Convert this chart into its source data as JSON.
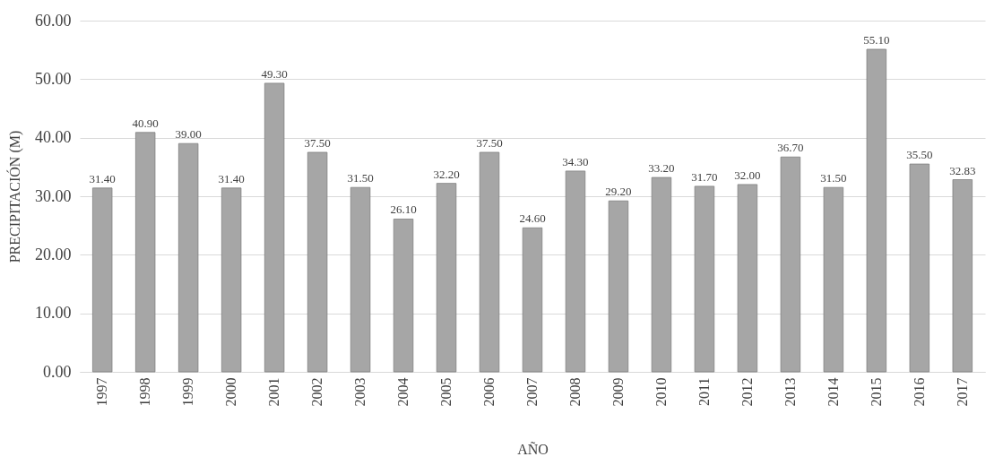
{
  "chart_data": {
    "type": "bar",
    "xlabel": "AÑO",
    "ylabel": "PRECIPITACIÓN (M)",
    "categories": [
      "1997",
      "1998",
      "1999",
      "2000",
      "2001",
      "2002",
      "2003",
      "2004",
      "2005",
      "2006",
      "2007",
      "2008",
      "2009",
      "2010",
      "2011",
      "2012",
      "2013",
      "2014",
      "2015",
      "2016",
      "2017"
    ],
    "values": [
      31.4,
      40.9,
      39.0,
      31.4,
      49.3,
      37.5,
      31.5,
      26.1,
      32.2,
      37.5,
      24.6,
      34.3,
      29.2,
      33.2,
      31.7,
      32.0,
      36.7,
      31.5,
      55.1,
      35.5,
      32.83
    ],
    "value_labels": [
      "31.40",
      "40.90",
      "39.00",
      "31.40",
      "49.30",
      "37.50",
      "31.50",
      "26.10",
      "32.20",
      "37.50",
      "24.60",
      "34.30",
      "29.20",
      "33.20",
      "31.70",
      "32.00",
      "36.70",
      "31.50",
      "55.10",
      "35.50",
      "32.83"
    ],
    "color": "#a6a6a6",
    "ylim": [
      0,
      60
    ],
    "yticks": [
      {
        "value": 0,
        "label": "0.00"
      },
      {
        "value": 10,
        "label": "10.00"
      },
      {
        "value": 20,
        "label": "20.00"
      },
      {
        "value": 30,
        "label": "30.00"
      },
      {
        "value": 40,
        "label": "40.00"
      },
      {
        "value": 50,
        "label": "50.00"
      },
      {
        "value": 60,
        "label": "60.00"
      }
    ],
    "grid": "y"
  }
}
